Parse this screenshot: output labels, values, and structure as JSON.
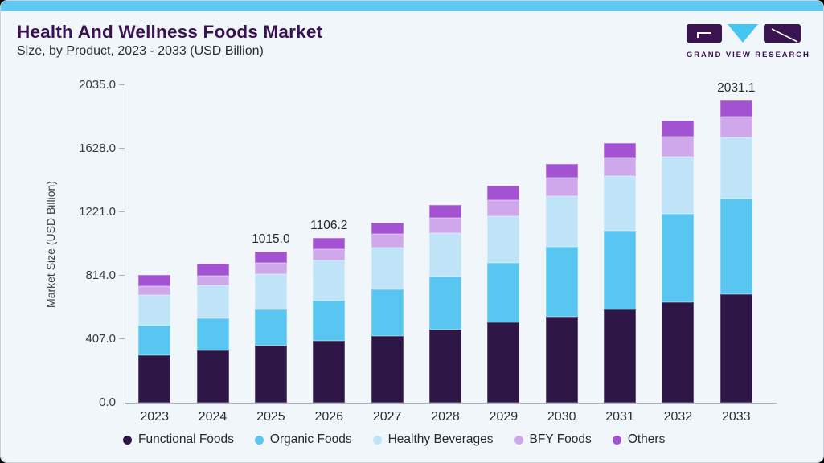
{
  "header": {
    "title": "Health And Wellness Foods Market",
    "subtitle": "Size, by Product, 2023 - 2033 (USD Billion)"
  },
  "logo": {
    "text": "GRAND VIEW RESEARCH",
    "purple": "#3a1350",
    "cyan": "#45c6f0"
  },
  "theme": {
    "card_background": "#f0f6fa",
    "top_strip": "#5fc9f2",
    "title_color": "#3a1253",
    "axis_color": "#a9b2bc"
  },
  "chart_data": {
    "type": "bar",
    "stacked": true,
    "title": "Health And Wellness Foods Market Size, by Product, 2023 - 2033 (USD Billion)",
    "xlabel": "",
    "ylabel": "Market Size (USD Billion)",
    "ylim": [
      0,
      2035
    ],
    "yticks": [
      "0.0",
      "407.0",
      "814.0",
      "1221.0",
      "1628.0",
      "2035.0"
    ],
    "grid": false,
    "legend_position": "bottom",
    "categories": [
      "2023",
      "2024",
      "2025",
      "2026",
      "2027",
      "2028",
      "2029",
      "2030",
      "2031",
      "2032",
      "2033"
    ],
    "series": [
      {
        "name": "Functional Foods",
        "color": "#2e1646",
        "values": [
          320,
          351,
          382,
          414,
          448,
          491,
          540,
          578,
          626,
          675,
          729
        ]
      },
      {
        "name": "Organic Foods",
        "color": "#58c6f1",
        "values": [
          198,
          216,
          245,
          270,
          313,
          356,
          400,
          470,
          529,
          594,
          643
        ]
      },
      {
        "name": "Healthy Beverages",
        "color": "#bfe4f8",
        "values": [
          206,
          221,
          237,
          270,
          281,
          292,
          315,
          340,
          366,
          383,
          410
        ]
      },
      {
        "name": "BFY Foods",
        "color": "#cea8ea",
        "values": [
          59,
          67,
          76,
          77,
          92,
          103,
          106,
          124,
          126,
          135,
          141
        ]
      },
      {
        "name": "Others",
        "color": "#a353d2",
        "values": [
          76,
          78,
          75,
          75.2,
          76,
          86,
          95,
          92,
          97,
          108,
          108.1
        ]
      }
    ],
    "totals": [
      859,
      933,
      1015.0,
      1106.2,
      1210,
      1328,
      1456,
      1604,
      1744,
      1895,
      2031.1
    ],
    "annotations": [
      {
        "category": "2025",
        "text": "1015.0"
      },
      {
        "category": "2026",
        "text": "1106.2"
      },
      {
        "category": "2033",
        "text": "2031.1"
      }
    ]
  }
}
